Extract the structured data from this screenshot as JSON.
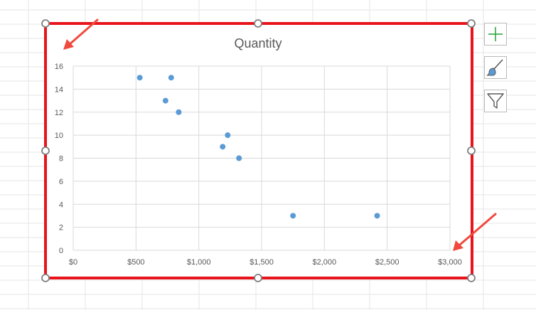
{
  "chart_data": {
    "type": "scatter",
    "title": "Quantity",
    "xlabel": "",
    "ylabel": "",
    "xlim": [
      0,
      3000
    ],
    "ylim": [
      0,
      16
    ],
    "x_ticks": [
      0,
      500,
      1000,
      1500,
      2000,
      2500,
      3000
    ],
    "x_tick_labels": [
      "$0",
      "$500",
      "$1,000",
      "$1,500",
      "$2,000",
      "$2,500",
      "$3,000"
    ],
    "y_ticks": [
      0,
      2,
      4,
      6,
      8,
      10,
      12,
      14,
      16
    ],
    "y_tick_labels": [
      "0",
      "2",
      "4",
      "6",
      "8",
      "10",
      "12",
      "14",
      "16"
    ],
    "grid": true,
    "legend": "none",
    "series": [
      {
        "color": "#5b9bd5",
        "points": [
          {
            "x": 530,
            "y": 15
          },
          {
            "x": 780,
            "y": 15
          },
          {
            "x": 735,
            "y": 13
          },
          {
            "x": 840,
            "y": 12
          },
          {
            "x": 1230,
            "y": 10
          },
          {
            "x": 1190,
            "y": 9
          },
          {
            "x": 1320,
            "y": 8
          },
          {
            "x": 1750,
            "y": 3
          },
          {
            "x": 2420,
            "y": 3
          }
        ]
      }
    ]
  },
  "colors": {
    "selection_border": "#e8141c",
    "annotation_arrow": "#f04a3e",
    "gridline": "#d9d9d9",
    "sheet_gridline": "#e6e6e6",
    "handle": "#7f7f7f",
    "add_icon": "#21a336"
  },
  "side_buttons": [
    {
      "icon": "plus-icon",
      "name": "chart-elements-button"
    },
    {
      "icon": "paintbrush-icon",
      "name": "chart-styles-button"
    },
    {
      "icon": "funnel-icon",
      "name": "chart-filters-button"
    }
  ]
}
